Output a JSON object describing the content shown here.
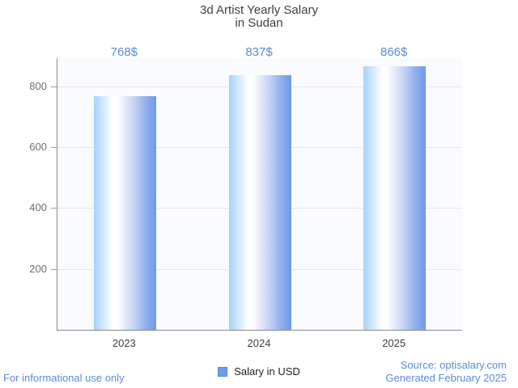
{
  "title": {
    "line1": "3d Artist Yearly Salary",
    "line2": "in Sudan"
  },
  "chart_data": {
    "type": "bar",
    "title": "3d Artist Yearly Salary in Sudan",
    "categories": [
      "2023",
      "2024",
      "2025"
    ],
    "values": [
      768,
      837,
      866
    ],
    "value_labels": [
      "768$",
      "837$",
      "866$"
    ],
    "legend": "Salary in USD",
    "legend_position": "bottom",
    "xlabel": "",
    "ylabel": "",
    "ylim": [
      0,
      893
    ],
    "yticks": [
      200,
      400,
      600,
      800
    ],
    "grid": true,
    "colors": {
      "bar_gradient_left": "#a6d2fa",
      "bar_gradient_mid": "#ffffff",
      "bar_gradient_right": "#6e9ae9",
      "value_label": "#5c8bd9",
      "legend_swatch": "#6d9eeb",
      "axis_line": "#8a8a8a",
      "gridline": "#e6e6ea"
    }
  },
  "footer": {
    "disclaimer": "For informational use only",
    "source": "Source: optisalary.com",
    "generated": "Generated February 2025"
  }
}
